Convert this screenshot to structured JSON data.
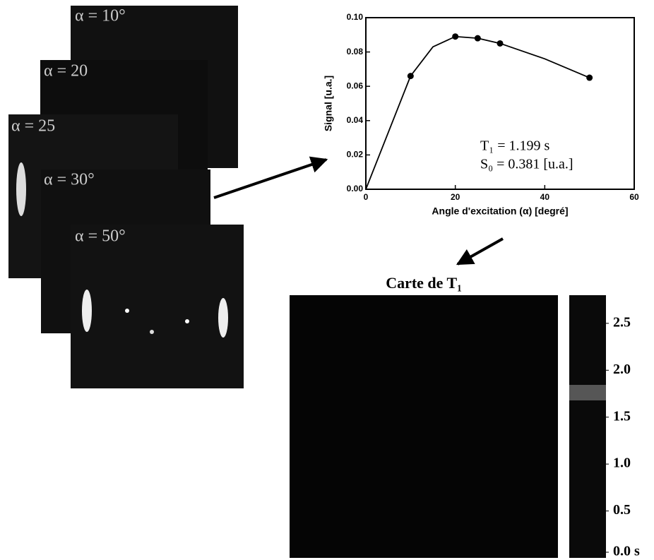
{
  "images": [
    {
      "label": "α = 10°"
    },
    {
      "label": "α = 20"
    },
    {
      "label": "α = 25"
    },
    {
      "label": "α = 30°"
    },
    {
      "label": "α = 50°"
    }
  ],
  "chart_data": {
    "type": "line",
    "x_label": "Angle d'excitation (α) [degré]",
    "y_label": "Signal [u.a.]",
    "series": [
      {
        "mode": "line",
        "color": "#000000",
        "x": [
          0,
          10,
          15,
          20,
          25,
          30,
          40,
          50
        ],
        "values": [
          0,
          0.066,
          0.083,
          0.089,
          0.088,
          0.085,
          0.076,
          0.065
        ]
      },
      {
        "mode": "markers",
        "color": "#000000",
        "x": [
          10,
          20,
          25,
          30,
          50
        ],
        "values": [
          0.066,
          0.089,
          0.088,
          0.085,
          0.065
        ]
      }
    ],
    "xlim": [
      0,
      60
    ],
    "xticks": [
      0,
      20,
      40,
      60
    ],
    "ylim": [
      0,
      0.1
    ],
    "yticks": [
      {
        "value": 0,
        "label": "0.00"
      },
      {
        "value": 0.02,
        "label": "0.02"
      },
      {
        "value": 0.04,
        "label": "0.04"
      },
      {
        "value": 0.06,
        "label": "0.06"
      },
      {
        "value": 0.08,
        "label": "0.08"
      },
      {
        "value": 0.1,
        "label": "0.10"
      }
    ],
    "annotations": [
      "T₁ = 1.199 s",
      "S₀ = 0.381 [u.a.]"
    ]
  },
  "t1_map": {
    "title": "Carte de T₁",
    "colorbar_ticks": [
      {
        "value": 0,
        "label": "0.0 s"
      },
      0.5,
      {
        "value": 1,
        "label": "1.0"
      },
      1.5,
      {
        "value": 2,
        "label": "2.0"
      },
      2.5
    ],
    "colorbar_lim": [
      0,
      2.8
    ]
  }
}
